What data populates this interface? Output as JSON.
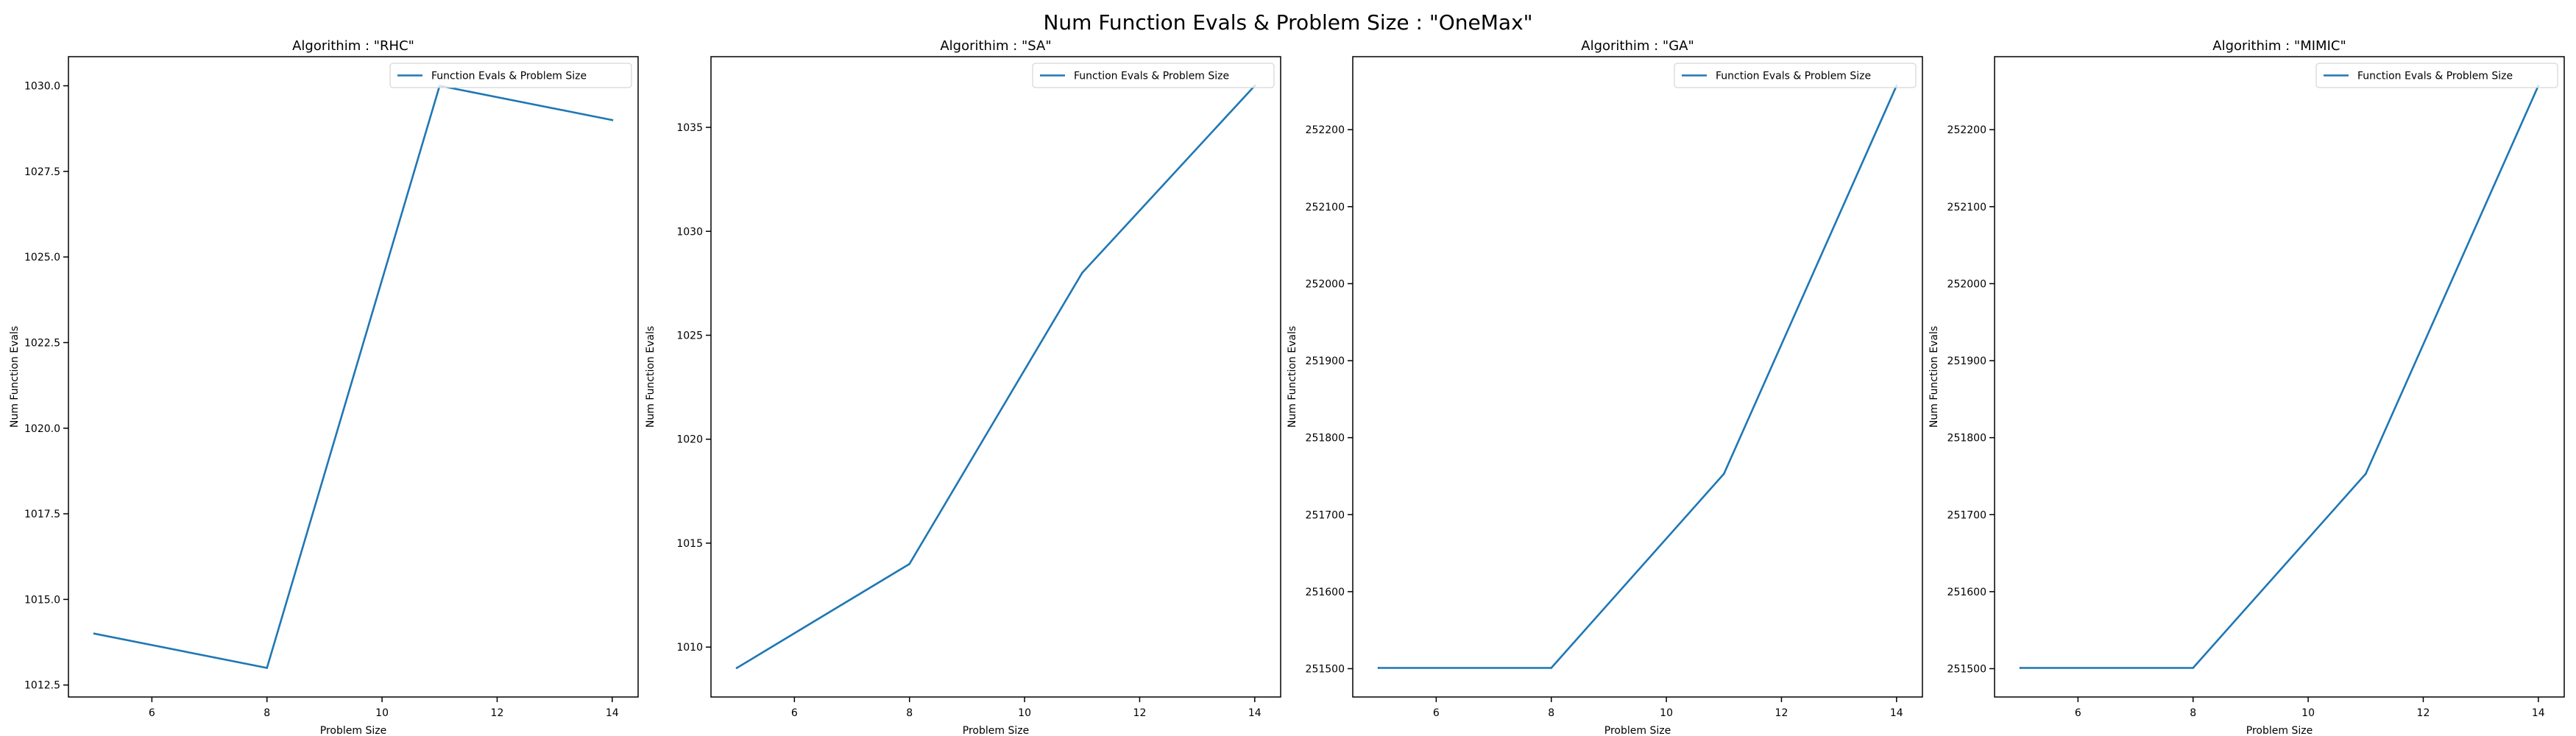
{
  "suptitle": "Num Function Evals & Problem Size : \"OneMax\"",
  "chart_data": [
    {
      "type": "line",
      "title": "Algorithim : \"RHC\"",
      "xlabel": "Problem Size",
      "ylabel": "Num Function Evals",
      "x": [
        5,
        8,
        11,
        14
      ],
      "series": [
        {
          "name": "Function Evals & Problem Size",
          "values": [
            1014,
            1013,
            1030,
            1029
          ],
          "color": "#1f77b4"
        }
      ],
      "xlim": [
        4.55,
        14.45
      ],
      "ylim": [
        1012.15,
        1030.85
      ],
      "xticks": [
        6,
        8,
        10,
        12,
        14
      ],
      "xtick_labels": [
        "6",
        "8",
        "10",
        "12",
        "14"
      ],
      "yticks": [
        1012.5,
        1015.0,
        1017.5,
        1020.0,
        1022.5,
        1025.0,
        1027.5,
        1030.0
      ],
      "ytick_labels": [
        "1012.5",
        "1015.0",
        "1017.5",
        "1020.0",
        "1022.5",
        "1025.0",
        "1027.5",
        "1030.0"
      ],
      "legend": "upper-right",
      "grid": false
    },
    {
      "type": "line",
      "title": "Algorithim : \"SA\"",
      "xlabel": "Problem Size",
      "ylabel": "Num Function Evals",
      "x": [
        5,
        8,
        11,
        14
      ],
      "series": [
        {
          "name": "Function Evals & Problem Size",
          "values": [
            1009,
            1014,
            1028,
            1037
          ],
          "color": "#1f77b4"
        }
      ],
      "xlim": [
        4.55,
        14.45
      ],
      "ylim": [
        1007.6,
        1038.4
      ],
      "xticks": [
        6,
        8,
        10,
        12,
        14
      ],
      "xtick_labels": [
        "6",
        "8",
        "10",
        "12",
        "14"
      ],
      "yticks": [
        1010,
        1015,
        1020,
        1025,
        1030,
        1035
      ],
      "ytick_labels": [
        "1010",
        "1015",
        "1020",
        "1025",
        "1030",
        "1035"
      ],
      "legend": "upper-right",
      "grid": false
    },
    {
      "type": "line",
      "title": "Algorithim : \"GA\"",
      "xlabel": "Problem Size",
      "ylabel": "Num Function Evals",
      "x": [
        5,
        8,
        11,
        14
      ],
      "series": [
        {
          "name": "Function Evals & Problem Size",
          "values": [
            251501,
            251501,
            251753,
            252257
          ],
          "color": "#1f77b4"
        }
      ],
      "xlim": [
        4.55,
        14.45
      ],
      "ylim": [
        251463.2,
        252294.8
      ],
      "xticks": [
        6,
        8,
        10,
        12,
        14
      ],
      "xtick_labels": [
        "6",
        "8",
        "10",
        "12",
        "14"
      ],
      "yticks": [
        251500,
        251600,
        251700,
        251800,
        251900,
        252000,
        252100,
        252200
      ],
      "ytick_labels": [
        "251500",
        "251600",
        "251700",
        "251800",
        "251900",
        "252000",
        "252100",
        "252200"
      ],
      "legend": "upper-right",
      "grid": false
    },
    {
      "type": "line",
      "title": "Algorithim : \"MIMIC\"",
      "xlabel": "Problem Size",
      "ylabel": "Num Function Evals",
      "x": [
        5,
        8,
        11,
        14
      ],
      "series": [
        {
          "name": "Function Evals & Problem Size",
          "values": [
            251501,
            251501,
            251753,
            252257
          ],
          "color": "#1f77b4"
        }
      ],
      "xlim": [
        4.55,
        14.45
      ],
      "ylim": [
        251463.2,
        252294.8
      ],
      "xticks": [
        6,
        8,
        10,
        12,
        14
      ],
      "xtick_labels": [
        "6",
        "8",
        "10",
        "12",
        "14"
      ],
      "yticks": [
        251500,
        251600,
        251700,
        251800,
        251900,
        252000,
        252100,
        252200
      ],
      "ytick_labels": [
        "251500",
        "251600",
        "251700",
        "251800",
        "251900",
        "252000",
        "252100",
        "252200"
      ],
      "legend": "upper-right",
      "grid": false
    }
  ]
}
